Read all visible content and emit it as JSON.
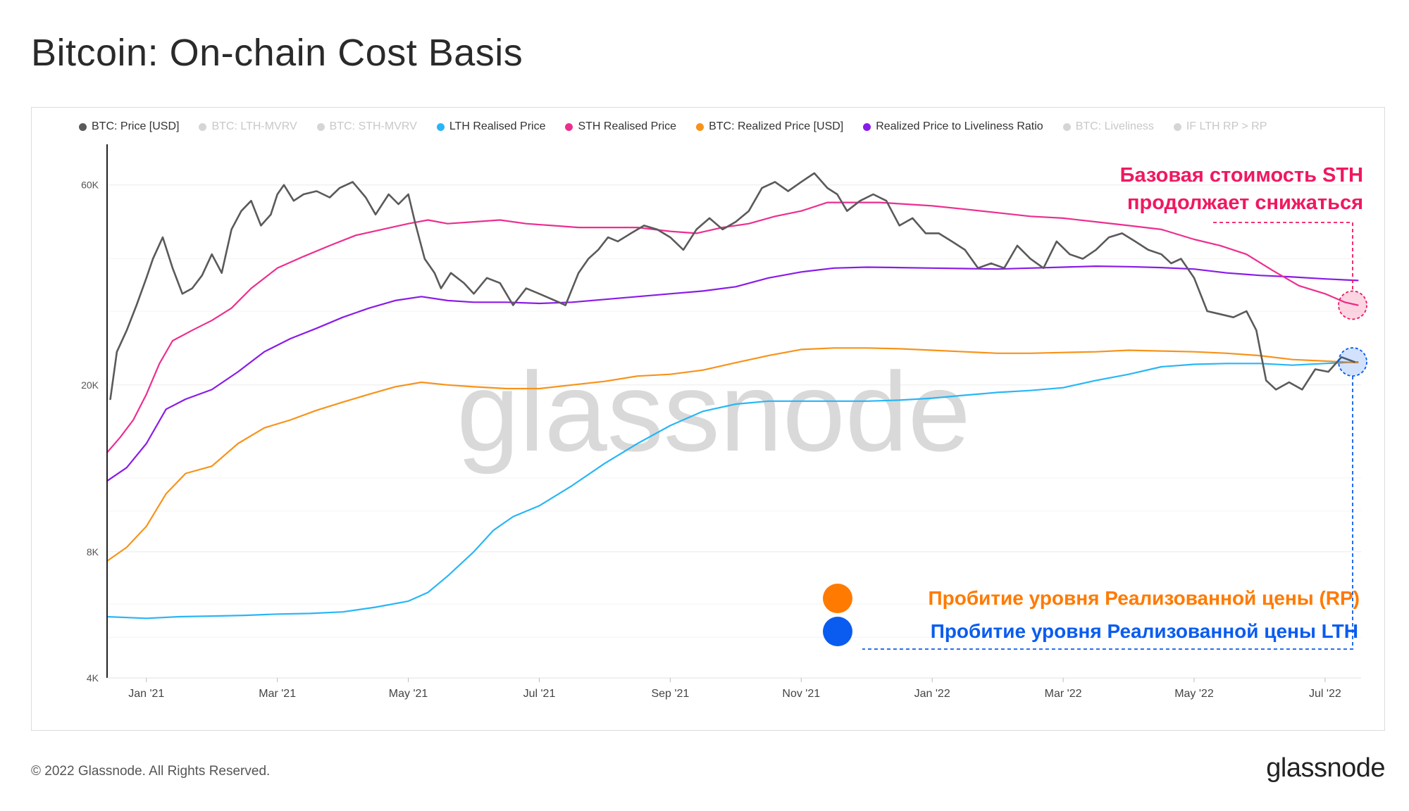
{
  "title": "Bitcoin: On-chain Cost Basis",
  "watermark": "glassnode",
  "footer": {
    "copyright": "© 2022 Glassnode. All Rights Reserved.",
    "logo": "glassnode"
  },
  "legend": [
    {
      "label": "BTC: Price [USD]",
      "color": "#5a5a5a",
      "active": true
    },
    {
      "label": "BTC: LTH-MVRV",
      "color": "#29c0f0",
      "active": false
    },
    {
      "label": "BTC: STH-MVRV",
      "color": "#e8338d",
      "active": false
    },
    {
      "label": "LTH Realised Price",
      "color": "#29b6f6",
      "active": true
    },
    {
      "label": "STH Realised Price",
      "color": "#ec2f8f",
      "active": true
    },
    {
      "label": "BTC: Realized Price [USD]",
      "color": "#f7931a",
      "active": true
    },
    {
      "label": "Realized Price to Liveliness Ratio",
      "color": "#8a1be8",
      "active": true
    },
    {
      "label": "BTC: Liveliness",
      "color": "#5b21b6",
      "active": false
    },
    {
      "label": "IF LTH RP > RP",
      "color": "#bfe3f7",
      "active": false
    }
  ],
  "annotations": {
    "sth_line1": "Базовая стоимость STH",
    "sth_line2": "продолжает снижаться",
    "rp_break": "Пробитие уровня Реализованной цены (RP)",
    "lth_break": "Пробитие уровня Реализованной цены LTH",
    "sth_color": "#f0185f",
    "rp_color": "#ff7a00",
    "lth_color": "#0a5cf0"
  },
  "chart_data": {
    "type": "line",
    "y_scale": "log",
    "ylim": [
      4000,
      75000
    ],
    "y_ticks": [
      {
        "label": "4K",
        "value": 4000
      },
      {
        "label": "8K",
        "value": 8000
      },
      {
        "label": "20K",
        "value": 20000
      },
      {
        "label": "60K",
        "value": 60000
      }
    ],
    "x_range_months": [
      -0.6,
      18.55
    ],
    "x_ticks": [
      {
        "label": "Jan '21",
        "m": 0
      },
      {
        "label": "Mar '21",
        "m": 2
      },
      {
        "label": "May '21",
        "m": 4
      },
      {
        "label": "Jul '21",
        "m": 6
      },
      {
        "label": "Sep '21",
        "m": 8
      },
      {
        "label": "Nov '21",
        "m": 10
      },
      {
        "label": "Jan '22",
        "m": 12
      },
      {
        "label": "Mar '22",
        "m": 14
      },
      {
        "label": "May '22",
        "m": 16
      },
      {
        "label": "Jul '22",
        "m": 18
      }
    ],
    "series": [
      {
        "name": "BTC: Price [USD]",
        "color": "#5a5a5a",
        "width": 2.6,
        "x": [
          -0.55,
          -0.45,
          -0.3,
          -0.15,
          0,
          0.1,
          0.25,
          0.4,
          0.55,
          0.7,
          0.85,
          1.0,
          1.15,
          1.3,
          1.45,
          1.6,
          1.75,
          1.9,
          2.0,
          2.1,
          2.25,
          2.4,
          2.6,
          2.8,
          2.95,
          3.15,
          3.35,
          3.5,
          3.7,
          3.85,
          4.0,
          4.1,
          4.25,
          4.4,
          4.5,
          4.65,
          4.85,
          5.0,
          5.2,
          5.4,
          5.6,
          5.8,
          6.0,
          6.2,
          6.4,
          6.6,
          6.75,
          6.9,
          7.05,
          7.2,
          7.4,
          7.6,
          7.8,
          8.0,
          8.2,
          8.4,
          8.6,
          8.8,
          9.0,
          9.2,
          9.4,
          9.6,
          9.8,
          10.0,
          10.2,
          10.4,
          10.55,
          10.7,
          10.9,
          11.1,
          11.3,
          11.5,
          11.7,
          11.9,
          12.1,
          12.3,
          12.5,
          12.7,
          12.9,
          13.1,
          13.3,
          13.5,
          13.7,
          13.9,
          14.1,
          14.3,
          14.5,
          14.7,
          14.9,
          15.1,
          15.3,
          15.5,
          15.65,
          15.8,
          16.0,
          16.2,
          16.4,
          16.6,
          16.8,
          16.95,
          17.1,
          17.25,
          17.45,
          17.65,
          17.85,
          18.05,
          18.25,
          18.45
        ],
        "values": [
          18500,
          24000,
          27000,
          31000,
          36000,
          40000,
          45000,
          38000,
          33000,
          34000,
          36500,
          41000,
          37000,
          47000,
          52000,
          55000,
          48000,
          51000,
          57000,
          60000,
          55000,
          57000,
          58000,
          56000,
          59000,
          61000,
          56000,
          51000,
          57000,
          54000,
          57000,
          49000,
          40000,
          37000,
          34000,
          37000,
          35000,
          33000,
          36000,
          35000,
          31000,
          34000,
          33000,
          32000,
          31000,
          37000,
          40000,
          42000,
          45000,
          44000,
          46000,
          48000,
          47000,
          45000,
          42000,
          47000,
          50000,
          47000,
          49000,
          52000,
          59000,
          61000,
          58000,
          61000,
          64000,
          59000,
          57000,
          52000,
          55000,
          57000,
          55000,
          48000,
          50000,
          46000,
          46000,
          44000,
          42000,
          38000,
          39000,
          38000,
          43000,
          40000,
          38000,
          44000,
          41000,
          40000,
          42000,
          45000,
          46000,
          44000,
          42000,
          41000,
          39000,
          40000,
          36000,
          30000,
          29500,
          29000,
          30000,
          27000,
          20500,
          19500,
          20300,
          19500,
          21800,
          21500,
          23300,
          22700
        ]
      },
      {
        "name": "LTH Realised Price",
        "color": "#29b6f6",
        "width": 2.2,
        "x": [
          -0.6,
          0,
          0.5,
          1,
          1.5,
          2,
          2.5,
          3,
          3.5,
          4,
          4.3,
          4.6,
          5,
          5.3,
          5.6,
          6,
          6.5,
          7,
          7.5,
          8,
          8.5,
          9,
          9.5,
          10,
          10.5,
          11,
          11.5,
          12,
          12.5,
          13,
          13.5,
          14,
          14.5,
          15,
          15.5,
          16,
          16.5,
          17,
          17.5,
          18,
          18.5
        ],
        "values": [
          5600,
          5550,
          5600,
          5620,
          5640,
          5680,
          5700,
          5750,
          5900,
          6100,
          6400,
          7000,
          8000,
          9000,
          9700,
          10300,
          11500,
          13000,
          14500,
          16000,
          17300,
          18000,
          18300,
          18300,
          18300,
          18300,
          18400,
          18600,
          18900,
          19200,
          19400,
          19700,
          20500,
          21200,
          22100,
          22400,
          22500,
          22500,
          22300,
          22500,
          22700
        ]
      },
      {
        "name": "STH Realised Price",
        "color": "#ec2f8f",
        "width": 2.2,
        "x": [
          -0.6,
          -0.4,
          -0.2,
          0,
          0.2,
          0.4,
          0.7,
          1,
          1.3,
          1.6,
          2,
          2.4,
          2.8,
          3.2,
          3.6,
          4,
          4.3,
          4.6,
          5,
          5.4,
          5.8,
          6.2,
          6.6,
          7,
          7.5,
          8,
          8.4,
          8.8,
          9.2,
          9.6,
          10,
          10.4,
          10.8,
          11.2,
          11.6,
          12,
          12.5,
          13,
          13.5,
          14,
          14.5,
          15,
          15.5,
          16,
          16.4,
          16.8,
          17.2,
          17.6,
          18,
          18.3,
          18.5
        ],
        "values": [
          13800,
          15000,
          16500,
          19000,
          22500,
          25500,
          27000,
          28500,
          30500,
          34000,
          38000,
          40500,
          43000,
          45500,
          47000,
          48500,
          49500,
          48500,
          49000,
          49500,
          48500,
          48000,
          47500,
          47500,
          47500,
          46500,
          46000,
          47500,
          48500,
          50500,
          52000,
          54500,
          54500,
          54500,
          54000,
          53500,
          52500,
          51500,
          50500,
          50000,
          49000,
          48000,
          47000,
          44500,
          43000,
          41000,
          37500,
          34500,
          33000,
          31500,
          31000
        ]
      },
      {
        "name": "BTC: Realized Price [USD]",
        "color": "#f7931a",
        "width": 2.2,
        "x": [
          -0.6,
          -0.3,
          0,
          0.3,
          0.6,
          1,
          1.4,
          1.8,
          2.2,
          2.6,
          3,
          3.4,
          3.8,
          4.2,
          4.6,
          5,
          5.5,
          6,
          6.5,
          7,
          7.5,
          8,
          8.5,
          9,
          9.5,
          10,
          10.5,
          11,
          11.5,
          12,
          12.5,
          13,
          13.5,
          14,
          14.5,
          15,
          15.5,
          16,
          16.5,
          17,
          17.5,
          18,
          18.5
        ],
        "values": [
          7600,
          8200,
          9200,
          11000,
          12300,
          12800,
          14500,
          15800,
          16500,
          17400,
          18200,
          19000,
          19800,
          20300,
          20000,
          19800,
          19600,
          19600,
          20000,
          20400,
          21000,
          21200,
          21700,
          22600,
          23500,
          24300,
          24500,
          24500,
          24400,
          24200,
          24000,
          23800,
          23800,
          23900,
          24000,
          24200,
          24100,
          24000,
          23800,
          23500,
          23000,
          22800,
          22600
        ]
      },
      {
        "name": "Realized Price to Liveliness Ratio",
        "color": "#8a1be8",
        "width": 2.2,
        "x": [
          -0.6,
          -0.3,
          0,
          0.3,
          0.6,
          1,
          1.4,
          1.8,
          2.2,
          2.6,
          3,
          3.4,
          3.8,
          4.2,
          4.6,
          5,
          5.5,
          6,
          6.5,
          7,
          7.5,
          8,
          8.5,
          9,
          9.5,
          10,
          10.5,
          11,
          11.5,
          12,
          12.5,
          13,
          13.5,
          14,
          14.5,
          15,
          15.5,
          16,
          16.5,
          17,
          17.5,
          18,
          18.5
        ],
        "values": [
          11800,
          12700,
          14500,
          17500,
          18500,
          19500,
          21500,
          24000,
          25800,
          27300,
          29000,
          30500,
          31800,
          32500,
          31800,
          31500,
          31500,
          31300,
          31500,
          32000,
          32500,
          33000,
          33500,
          34300,
          36000,
          37200,
          38000,
          38200,
          38100,
          38000,
          37900,
          37800,
          38000,
          38200,
          38400,
          38300,
          38100,
          37800,
          37000,
          36500,
          36200,
          35800,
          35500
        ]
      }
    ]
  }
}
